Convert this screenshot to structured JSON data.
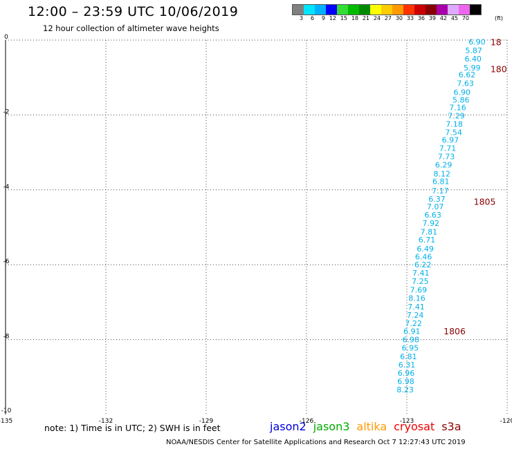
{
  "header": {
    "title": "12:00 – 23:59 UTC 10/06/2019",
    "subtitle": "12 hour collection of altimeter wave heights"
  },
  "color_scale": {
    "unit": "(ft)",
    "labels": [
      "3",
      "6",
      "9",
      "12",
      "15",
      "18",
      "21",
      "24",
      "27",
      "30",
      "33",
      "36",
      "39",
      "42",
      "45",
      "70"
    ],
    "colors": [
      "#808080",
      "#00e5ff",
      "#00b0ff",
      "#0000ff",
      "#33dd33",
      "#00bb00",
      "#008800",
      "#ffff00",
      "#ffcc00",
      "#ff9900",
      "#ff3300",
      "#cc0000",
      "#880000",
      "#aa00aa",
      "#ddaaff",
      "#ee66ee",
      "#000000"
    ]
  },
  "footnote": "note: 1) Time is in UTC; 2) SWH is in feet",
  "satellites": [
    {
      "name": "jason2",
      "color": "#0000dd"
    },
    {
      "name": "jason3",
      "color": "#00aa00"
    },
    {
      "name": "altika",
      "color": "#ff9900"
    },
    {
      "name": "cryosat",
      "color": "#ee0000"
    },
    {
      "name": "s3a",
      "color": "#880000"
    }
  ],
  "credit": "NOAA/NESDIS Center for Satellite Applications and Research   Oct  7 12:27:43 UTC 2019",
  "chart_data": {
    "type": "scatter",
    "xlim": [
      -135,
      -120
    ],
    "ylim": [
      -10,
      0
    ],
    "x_ticks": [
      -135,
      -132,
      -129,
      -126,
      -123,
      -120
    ],
    "x_tick_labels": [
      "-135",
      "-132",
      "-129",
      "-126",
      "-123",
      "-120"
    ],
    "y_ticks": [
      0,
      -2,
      -4,
      -6,
      -8,
      -10
    ],
    "y_tick_labels": [
      "0",
      "-2",
      "-4",
      "-6",
      "-8",
      "-10"
    ],
    "grid": true,
    "point_color": "#00b0e8",
    "points": [
      {
        "x": -120.9,
        "y": -0.05,
        "label": "6.90"
      },
      {
        "x": -121.0,
        "y": -0.28,
        "label": "5.87"
      },
      {
        "x": -121.02,
        "y": -0.5,
        "label": "6.40"
      },
      {
        "x": -121.05,
        "y": -0.74,
        "label": "5.99"
      },
      {
        "x": -121.2,
        "y": -0.92,
        "label": "6.62"
      },
      {
        "x": -121.25,
        "y": -1.15,
        "label": "7.63"
      },
      {
        "x": -121.35,
        "y": -1.39,
        "label": "6.90"
      },
      {
        "x": -121.38,
        "y": -1.6,
        "label": "5.86"
      },
      {
        "x": -121.48,
        "y": -1.8,
        "label": "7.16"
      },
      {
        "x": -121.52,
        "y": -2.02,
        "label": "7.29"
      },
      {
        "x": -121.58,
        "y": -2.24,
        "label": "7.18"
      },
      {
        "x": -121.6,
        "y": -2.46,
        "label": "7.54"
      },
      {
        "x": -121.7,
        "y": -2.67,
        "label": "6.97"
      },
      {
        "x": -121.78,
        "y": -2.89,
        "label": "7.71"
      },
      {
        "x": -121.82,
        "y": -3.11,
        "label": "7.73"
      },
      {
        "x": -121.9,
        "y": -3.33,
        "label": "6.29"
      },
      {
        "x": -121.95,
        "y": -3.57,
        "label": "8.12"
      },
      {
        "x": -121.98,
        "y": -3.77,
        "label": "6.81"
      },
      {
        "x": -122.0,
        "y": -4.02,
        "label": "7.17"
      },
      {
        "x": -122.1,
        "y": -4.24,
        "label": "6.37"
      },
      {
        "x": -122.15,
        "y": -4.45,
        "label": "7.07"
      },
      {
        "x": -122.22,
        "y": -4.67,
        "label": "6.63"
      },
      {
        "x": -122.28,
        "y": -4.89,
        "label": "7.92"
      },
      {
        "x": -122.34,
        "y": -5.12,
        "label": "7.81"
      },
      {
        "x": -122.4,
        "y": -5.33,
        "label": "6.71"
      },
      {
        "x": -122.45,
        "y": -5.57,
        "label": "6.49"
      },
      {
        "x": -122.5,
        "y": -5.78,
        "label": "6.46"
      },
      {
        "x": -122.52,
        "y": -6.0,
        "label": "6.22"
      },
      {
        "x": -122.58,
        "y": -6.22,
        "label": "7.41"
      },
      {
        "x": -122.6,
        "y": -6.44,
        "label": "7.25"
      },
      {
        "x": -122.65,
        "y": -6.67,
        "label": "7.69"
      },
      {
        "x": -122.7,
        "y": -6.89,
        "label": "8.16"
      },
      {
        "x": -122.72,
        "y": -7.12,
        "label": "7.41"
      },
      {
        "x": -122.75,
        "y": -7.34,
        "label": "7.24"
      },
      {
        "x": -122.8,
        "y": -7.56,
        "label": "7.22"
      },
      {
        "x": -122.85,
        "y": -7.78,
        "label": "6.91"
      },
      {
        "x": -122.88,
        "y": -8.0,
        "label": "6.98"
      },
      {
        "x": -122.9,
        "y": -8.22,
        "label": "6.95"
      },
      {
        "x": -122.95,
        "y": -8.45,
        "label": "6.81"
      },
      {
        "x": -123.0,
        "y": -8.67,
        "label": "6.31"
      },
      {
        "x": -123.02,
        "y": -8.89,
        "label": "6.96"
      },
      {
        "x": -123.03,
        "y": -9.11,
        "label": "6.98"
      },
      {
        "x": -123.05,
        "y": -9.34,
        "label": "8.23"
      }
    ],
    "time_labels": [
      {
        "x": -120.5,
        "y": -0.05,
        "label": "18"
      },
      {
        "x": -120.5,
        "y": -0.77,
        "label": "180"
      },
      {
        "x": -121.0,
        "y": -4.31,
        "label": "1805"
      },
      {
        "x": -121.9,
        "y": -7.77,
        "label": "1806"
      }
    ],
    "time_label_color": "#880000"
  }
}
